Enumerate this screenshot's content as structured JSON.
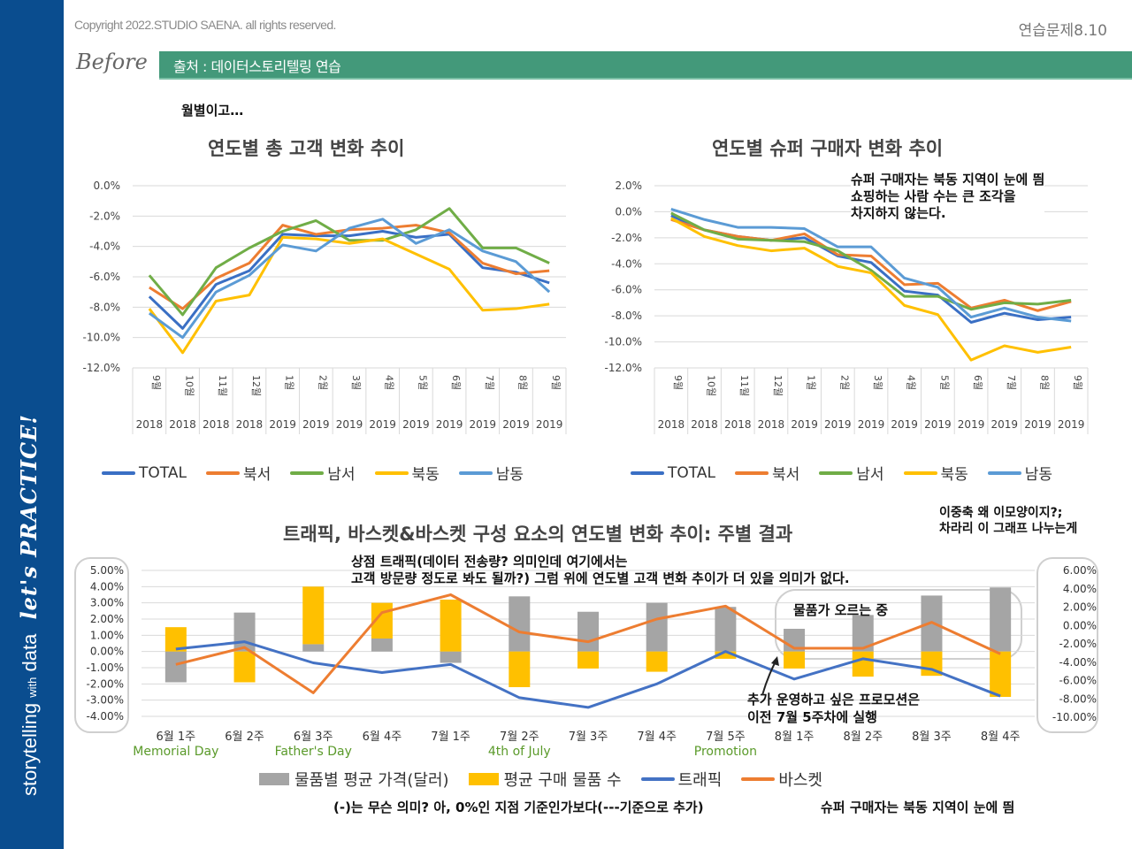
{
  "header": {
    "copyright": "Copyright 2022.STUDIO SAENA. all rights reserved.",
    "exercise": "연습문제8.10",
    "before_label": "Before",
    "source": "출처 : 데이터스토리텔링 연습"
  },
  "sidebar": {
    "brand_main": "storytelling",
    "brand_with": "with",
    "brand_data": "data",
    "practice": "let's PRACTICE!"
  },
  "notes": {
    "monthly": "월별이고…",
    "super_buyer_1": "슈퍼 구매자는 북동 지역이 눈에 띔",
    "super_buyer_2": "쇼핑하는 사람 수는 큰 조각을",
    "super_buyer_3": "차지하지 않는다.",
    "dual_axis_1": "이중축 왜 이모양이지?;",
    "dual_axis_2": "차라리 이 그래프 나누는게",
    "traffic_1": "상점 트래픽(데이터 전송량? 의미인데 여기에서는",
    "traffic_2": "고객 방문량 정도로 봐도 될까?) 그럼 위에 연도별 고객 변화 추이가 더 있을 의미가 없다.",
    "price_rising": "물품가 오르는 중",
    "promo_1": "추가 운영하고 싶은 프로모션은",
    "promo_2": "이전 7월 5주차에 실행",
    "negative_meaning": "(-)는 무슨 의미? 아, 0%인 지점 기준인가보다(---기준으로 추가)",
    "super_buyer_bottom": "슈퍼 구매자는 북동 지역이 눈에 띔"
  },
  "colors": {
    "total": "#3a6fc4",
    "northwest": "#ed7d31",
    "southwest": "#70ad47",
    "northeast": "#ffc000",
    "southeast": "#5b9bd5",
    "bar_gray": "#a5a5a5",
    "bar_gold": "#ffc000",
    "traffic": "#4472c4",
    "basket": "#ed7d31",
    "sidebar": "#0a4d8f",
    "source_bar": "#43997a"
  },
  "chart_data": [
    {
      "id": "total_customers",
      "type": "line",
      "title": "연도별 총 고객 변화 추이",
      "x": [
        "9월|2018",
        "10월|2018",
        "11월|2018",
        "12월|2018",
        "1월|2019",
        "2월|2019",
        "3월|2019",
        "4월|2019",
        "5월|2019",
        "6월|2019",
        "7월|2019",
        "8월|2019",
        "9월|2019"
      ],
      "month_labels": [
        "9월",
        "10월",
        "11월",
        "12월",
        "1월",
        "2월",
        "3월",
        "4월",
        "5월",
        "6월",
        "7월",
        "8월",
        "9월"
      ],
      "year_labels": [
        "2018",
        "2018",
        "2018",
        "2018",
        "2019",
        "2019",
        "2019",
        "2019",
        "2019",
        "2019",
        "2019",
        "2019",
        "2019"
      ],
      "ylim": [
        -12,
        0
      ],
      "yticks": [
        0,
        -2,
        -4,
        -6,
        -8,
        -10,
        -12
      ],
      "ytick_labels": [
        "0.0%",
        "-2.0%",
        "-4.0%",
        "-6.0%",
        "-8.0%",
        "-10.0%",
        "-12.0%"
      ],
      "grid": true,
      "legend": "bottom",
      "series": [
        {
          "name": "TOTAL",
          "color": "#3a6fc4",
          "values": [
            -7.3,
            -9.4,
            -6.5,
            -5.6,
            -3.2,
            -3.3,
            -3.3,
            -3.0,
            -3.4,
            -3.2,
            -5.4,
            -5.7,
            -6.4
          ]
        },
        {
          "name": "북서",
          "color": "#ed7d31",
          "values": [
            -6.7,
            -8.1,
            -6.1,
            -5.1,
            -2.6,
            -3.2,
            -2.9,
            -2.8,
            -2.6,
            -3.1,
            -5.1,
            -5.8,
            -5.6
          ]
        },
        {
          "name": "남서",
          "color": "#70ad47",
          "values": [
            -5.9,
            -8.5,
            -5.4,
            -4.1,
            -3.0,
            -2.3,
            -3.6,
            -3.6,
            -2.9,
            -1.5,
            -4.1,
            -4.1,
            -5.1
          ]
        },
        {
          "name": "북동",
          "color": "#ffc000",
          "values": [
            -8.1,
            -11.0,
            -7.6,
            -7.2,
            -3.4,
            -3.5,
            -3.8,
            -3.5,
            -4.5,
            -5.5,
            -8.2,
            -8.1,
            -7.8
          ]
        },
        {
          "name": "남동",
          "color": "#5b9bd5",
          "values": [
            -8.4,
            -10.0,
            -7.0,
            -5.9,
            -3.9,
            -4.3,
            -2.8,
            -2.2,
            -3.8,
            -2.9,
            -4.3,
            -5.0,
            -7.0
          ]
        }
      ]
    },
    {
      "id": "super_buyers",
      "type": "line",
      "title": "연도별 슈퍼 구매자 변화 추이",
      "x": [
        "9월|2018",
        "10월|2018",
        "11월|2018",
        "12월|2018",
        "1월|2019",
        "2월|2019",
        "3월|2019",
        "4월|2019",
        "5월|2019",
        "6월|2019",
        "7월|2019",
        "8월|2019",
        "9월|2019"
      ],
      "month_labels": [
        "9월",
        "10월",
        "11월",
        "12월",
        "1월",
        "2월",
        "3월",
        "4월",
        "5월",
        "6월",
        "7월",
        "8월",
        "9월"
      ],
      "year_labels": [
        "2018",
        "2018",
        "2018",
        "2018",
        "2019",
        "2019",
        "2019",
        "2019",
        "2019",
        "2019",
        "2019",
        "2019",
        "2019"
      ],
      "ylim": [
        -12,
        2
      ],
      "yticks": [
        2,
        0,
        -2,
        -4,
        -6,
        -8,
        -10,
        -12
      ],
      "ytick_labels": [
        "2.0%",
        "0.0%",
        "-2.0%",
        "-4.0%",
        "-6.0%",
        "-8.0%",
        "-10.0%",
        "-12.0%"
      ],
      "grid": true,
      "legend": "bottom",
      "series": [
        {
          "name": "TOTAL",
          "color": "#3a6fc4",
          "values": [
            -0.3,
            -1.4,
            -1.9,
            -2.2,
            -2.0,
            -3.4,
            -3.9,
            -6.1,
            -6.4,
            -8.5,
            -7.8,
            -8.3,
            -8.1
          ]
        },
        {
          "name": "북서",
          "color": "#ed7d31",
          "values": [
            -0.6,
            -1.4,
            -1.9,
            -2.2,
            -1.7,
            -3.3,
            -3.4,
            -5.6,
            -5.5,
            -7.4,
            -6.8,
            -7.6,
            -6.9
          ]
        },
        {
          "name": "남서",
          "color": "#70ad47",
          "values": [
            -0.1,
            -1.4,
            -2.1,
            -2.2,
            -2.3,
            -3.0,
            -4.5,
            -6.5,
            -6.5,
            -7.5,
            -7.0,
            -7.1,
            -6.8
          ]
        },
        {
          "name": "북동",
          "color": "#ffc000",
          "values": [
            -0.5,
            -1.9,
            -2.6,
            -3.0,
            -2.8,
            -4.2,
            -4.7,
            -7.2,
            -7.9,
            -11.4,
            -10.3,
            -10.8,
            -10.4
          ]
        },
        {
          "name": "남동",
          "color": "#5b9bd5",
          "values": [
            0.2,
            -0.6,
            -1.2,
            -1.2,
            -1.3,
            -2.7,
            -2.7,
            -5.1,
            -5.8,
            -8.1,
            -7.4,
            -8.1,
            -8.4
          ]
        }
      ]
    },
    {
      "id": "traffic_basket_weekly",
      "type": "bar",
      "title": "트래픽, 바스켓&바스켓 구성 요소의 연도별 변화 추이: 주별 결과",
      "categories": [
        "6월 1주",
        "6월 2주",
        "6월 3주",
        "6월 4주",
        "7월 1주",
        "7월 2주",
        "7월 3주",
        "7월 4주",
        "7월 5주",
        "8월 1주",
        "8월 2주",
        "8월 3주",
        "8월 4주"
      ],
      "event_labels": [
        {
          "category": "6월 1주",
          "label": "Memorial Day"
        },
        {
          "category": "6월 3주",
          "label": "Father's Day"
        },
        {
          "category": "7월 2주",
          "label": "4th of July"
        },
        {
          "category": "7월 5주",
          "label": "Promotion"
        }
      ],
      "ylim_left": [
        -4,
        5
      ],
      "yticks_left": [
        "5.00%",
        "4.00%",
        "3.00%",
        "2.00%",
        "1.00%",
        "0.00%",
        "-1.00%",
        "-2.00%",
        "-3.00%",
        "-4.00%"
      ],
      "ylim_right": [
        -10,
        6
      ],
      "yticks_right": [
        "6.00%",
        "4.00%",
        "2.00%",
        "0.00%",
        "-2.00%",
        "-4.00%",
        "-6.00%",
        "-8.00%",
        "-10.00%"
      ],
      "grid": true,
      "legend": "bottom",
      "series": [
        {
          "name": "물품별 평균 가격(달러)",
          "kind": "stacked-bar",
          "color": "#a5a5a5",
          "values": [
            -1.9,
            2.4,
            0.45,
            0.8,
            -0.7,
            3.4,
            2.45,
            3.0,
            2.75,
            1.4,
            2.25,
            3.45,
            3.95
          ]
        },
        {
          "name": "평균 구매 물품 수",
          "kind": "stacked-bar",
          "color": "#ffc000",
          "values": [
            1.5,
            -1.9,
            3.55,
            2.2,
            3.2,
            -2.2,
            -1.05,
            -1.25,
            -0.45,
            -1.05,
            -1.55,
            -1.5,
            -2.8
          ]
        },
        {
          "name": "트래픽",
          "kind": "line",
          "color": "#4472c4",
          "values": [
            0.15,
            0.6,
            -0.7,
            -1.3,
            -0.8,
            -2.85,
            -3.45,
            -2.0,
            0.0,
            -1.7,
            -0.45,
            -1.1,
            -2.75
          ]
        },
        {
          "name": "바스켓",
          "kind": "line",
          "color": "#ed7d31",
          "values": [
            -0.8,
            0.25,
            -2.55,
            2.4,
            3.5,
            1.2,
            0.6,
            2.0,
            2.8,
            0.2,
            0.2,
            1.8,
            -0.15
          ]
        }
      ]
    }
  ]
}
